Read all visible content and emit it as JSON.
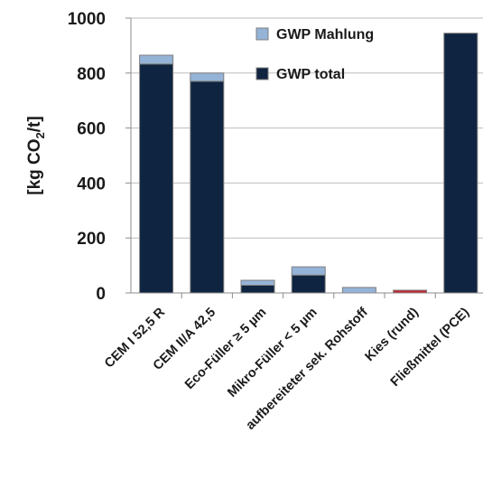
{
  "chart_data": {
    "type": "bar",
    "stacked": true,
    "ylabel": {
      "main": "[kg CO",
      "sub": "2",
      "tail": "/t]"
    },
    "ylim": [
      0,
      1000
    ],
    "yticks": [
      0,
      200,
      400,
      600,
      800,
      1000
    ],
    "grid": true,
    "legend_position": "top-right",
    "categories": [
      "CEM I 52,5 R",
      "CEM II/A 42,5",
      "Eco-Füller  ≥ 5 µm",
      "Mikro-Füller < 5 µm",
      "aufbereiteter sek. Rohstoff",
      "Kies (rund)",
      "Fließmittel (PCE)"
    ],
    "series": [
      {
        "name": "GWP total",
        "color": "#0f2440",
        "values": [
          833,
          770,
          28,
          65,
          0,
          0,
          945
        ],
        "point_colors": [
          null,
          null,
          null,
          null,
          null,
          "#c0262e",
          null
        ]
      },
      {
        "name": "GWP Mahlung",
        "color": "#95b3d7",
        "values": [
          32,
          30,
          18,
          30,
          20,
          10,
          0
        ],
        "point_colors": [
          null,
          null,
          null,
          null,
          null,
          "#c0262e",
          null
        ]
      }
    ],
    "legend_order": [
      "GWP Mahlung",
      "GWP total"
    ]
  }
}
